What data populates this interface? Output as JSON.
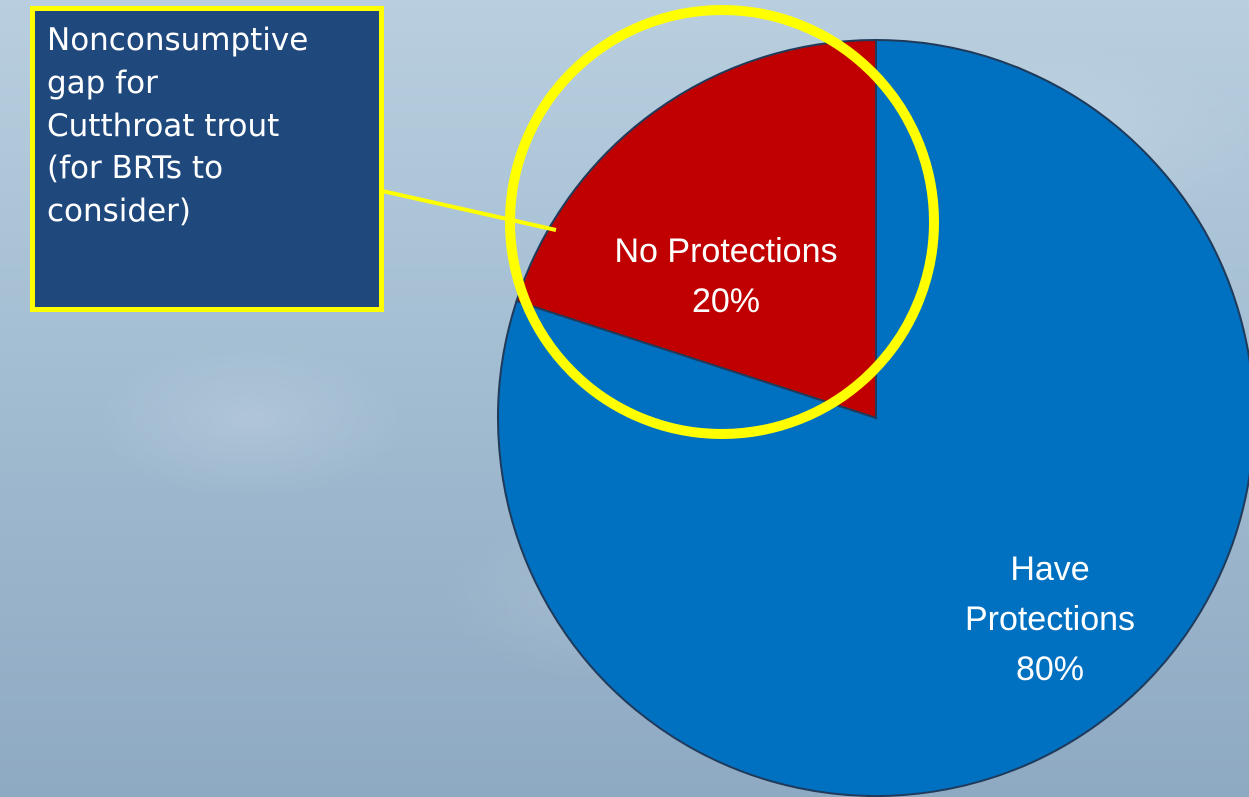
{
  "chart_data": {
    "type": "pie",
    "slices": [
      {
        "label_lines": [
          "No Protections",
          "20%"
        ],
        "value": 20,
        "color": "#c00000"
      },
      {
        "label_lines": [
          "Have",
          "Protections",
          "80%"
        ],
        "value": 80,
        "color": "#0070c0"
      }
    ],
    "legend": "none"
  },
  "callout": {
    "text": "Nonconsumptive\ngap for\nCutthroat trout\n(for BRTs to\nconsider)",
    "box_color": "#1f497d",
    "border_color": "#ffff00"
  },
  "highlight": {
    "color": "#ffff00"
  }
}
